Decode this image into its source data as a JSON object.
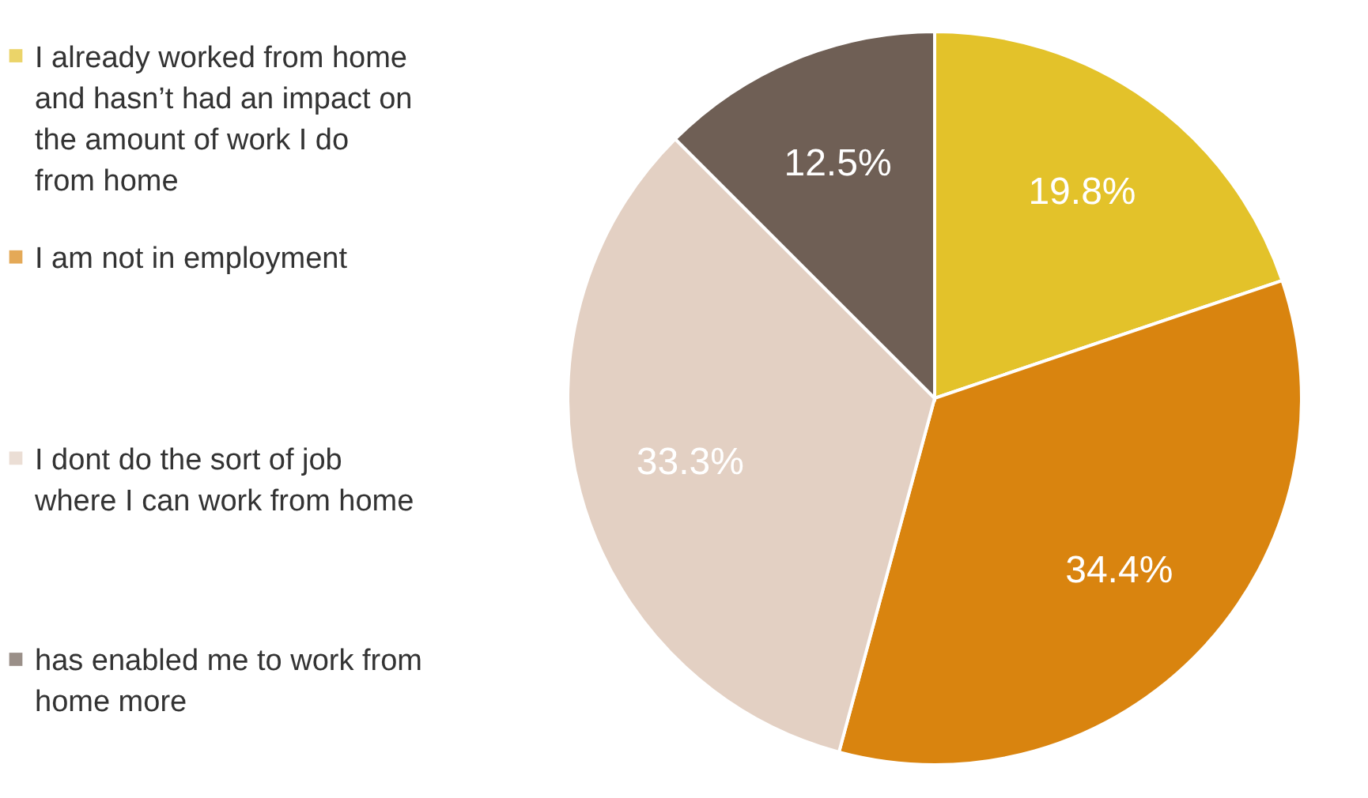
{
  "chart_data": {
    "type": "pie",
    "categories": [
      "I already worked from home and hasn’t had an impact on the amount of work I do from home",
      "I am not in employment",
      "I dont do the sort of job where I can work from home",
      "has enabled me to work from home more"
    ],
    "values": [
      19.8,
      34.4,
      33.3,
      12.5
    ],
    "colors": [
      "#e3c22a",
      "#d9840f",
      "#e3d0c3",
      "#6f5f55"
    ],
    "value_labels": [
      "19.8%",
      "34.4%",
      "33.3%",
      "12.5%"
    ],
    "legend": "left"
  }
}
